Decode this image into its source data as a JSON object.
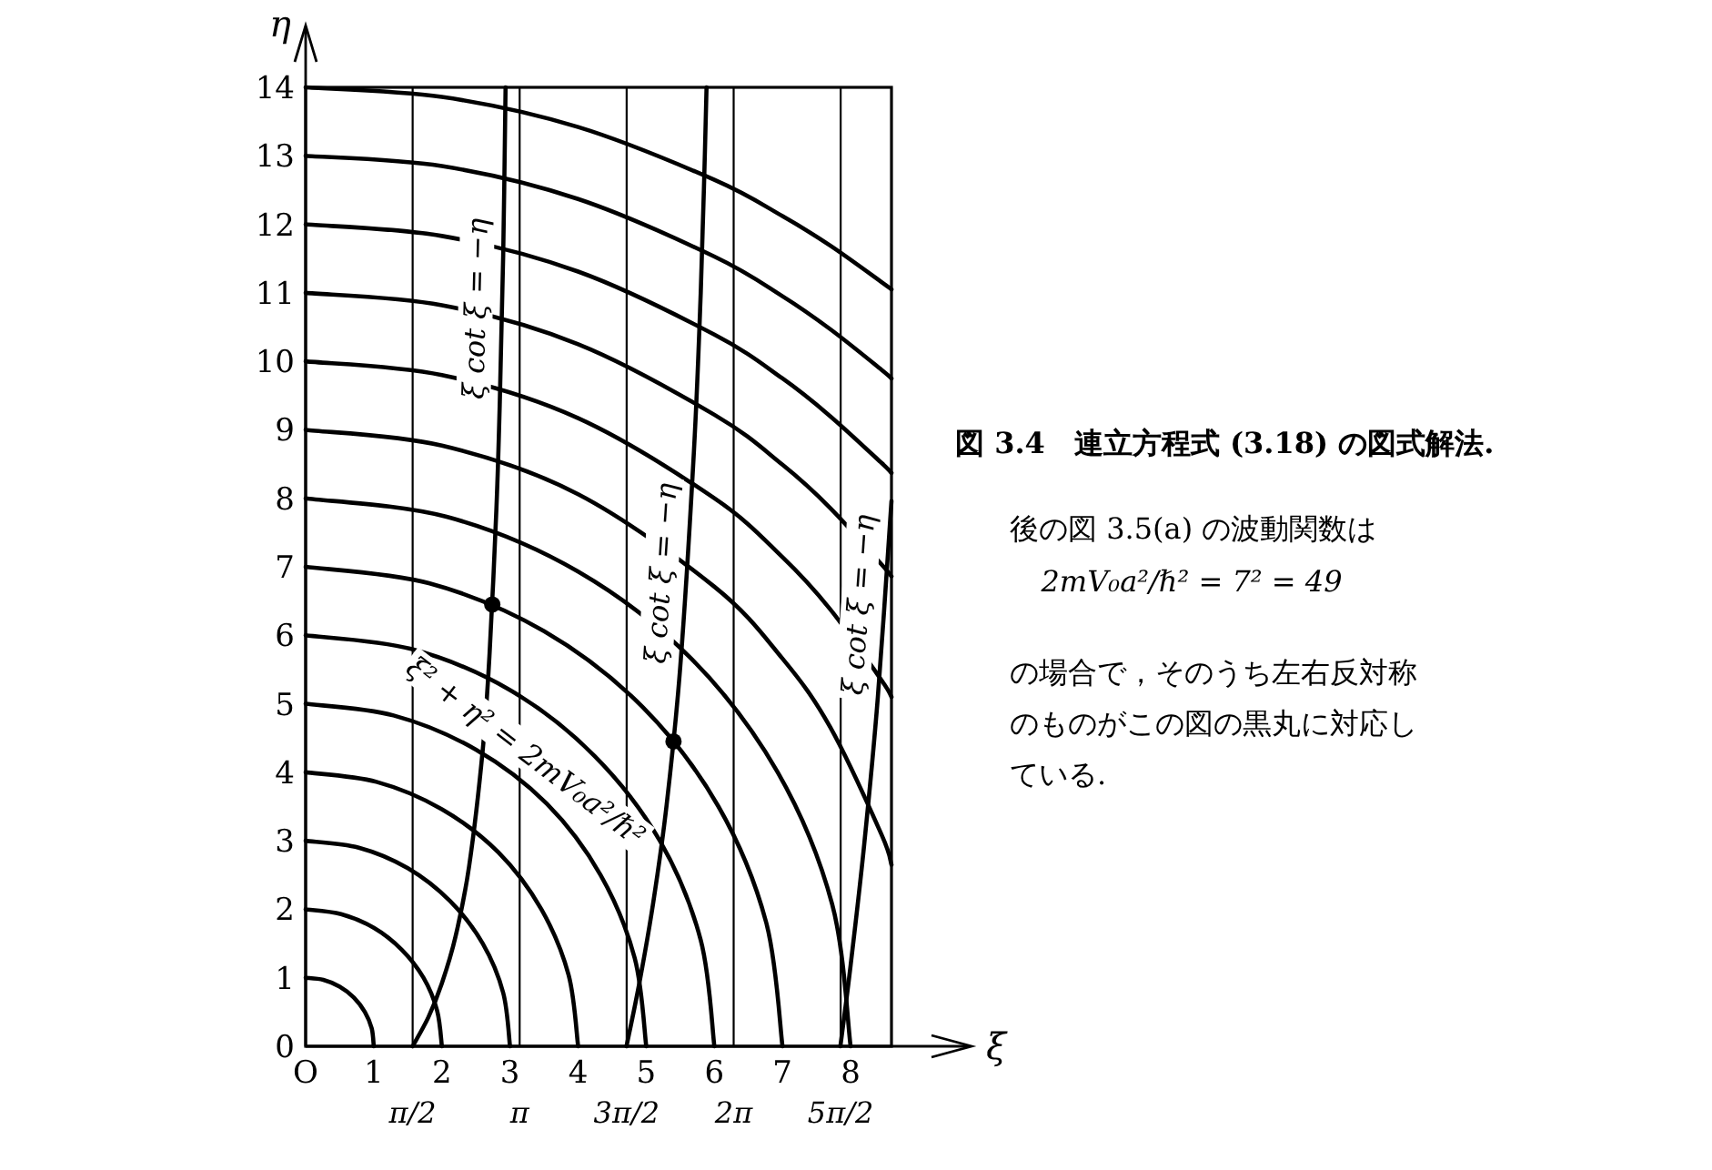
{
  "chart_data": {
    "type": "line",
    "title": "図 3.4　連立方程式 (3.18) の図式解法.",
    "xlabel": "ξ",
    "ylabel": "η",
    "xlim": [
      0,
      8.6
    ],
    "ylim": [
      0,
      14
    ],
    "xticks": [
      {
        "value": 0,
        "label": "O"
      },
      1,
      2,
      3,
      4,
      5,
      6,
      7,
      8
    ],
    "yticks": [
      0,
      1,
      2,
      3,
      4,
      5,
      6,
      7,
      8,
      9,
      10,
      11,
      12,
      13,
      14
    ],
    "ref_lines": [
      {
        "axis": "x",
        "value": 1.5708,
        "label": "π/2",
        "color": "#000000"
      },
      {
        "axis": "x",
        "value": 3.1416,
        "label": "π",
        "color": "#000000"
      },
      {
        "axis": "x",
        "value": 4.7124,
        "label": "3π/2",
        "color": "#000000"
      },
      {
        "axis": "x",
        "value": 6.2832,
        "label": "2π",
        "color": "#000000"
      },
      {
        "axis": "x",
        "value": 7.854,
        "label": "5π/2",
        "color": "#000000"
      }
    ],
    "annotations": [
      "後の図 3.5(a) の波動関数は",
      "2mV₀a²/ℏ² = 7² = 49",
      "の場合で，そのうち左右反対称",
      "のものがこの図の黒丸に対応し",
      "ている.",
      {
        "text": "ξ cot ξ = −η",
        "x": 2.88,
        "y": 10.76
      },
      {
        "text": "ξ cot ξ = −η",
        "x": 5.6,
        "y": 6.88
      },
      {
        "text": "ξ cot ξ = −η",
        "x": 8.5,
        "y": 6.42
      },
      {
        "text": "ξ² + η² = 2mV₀a²/ℏ²",
        "x": 3,
        "y": 4
      }
    ],
    "series": [
      {
        "color": "#000000",
        "x": [
          0,
          0.26,
          0.5,
          0.71,
          0.87,
          0.97,
          1
        ],
        "values": [
          1,
          0.97,
          0.87,
          0.71,
          0.5,
          0.26,
          0
        ]
      },
      {
        "color": "#000000",
        "x": [
          0,
          0.52,
          1,
          1.41,
          1.73,
          1.93,
          2
        ],
        "values": [
          2,
          1.93,
          1.73,
          1.41,
          1,
          0.52,
          0
        ]
      },
      {
        "color": "#000000",
        "x": [
          0,
          0.78,
          1.5,
          2.12,
          2.6,
          2.9,
          3
        ],
        "values": [
          3,
          2.9,
          2.6,
          2.12,
          1.5,
          0.78,
          0
        ]
      },
      {
        "color": "#000000",
        "x": [
          0,
          1.04,
          2,
          2.83,
          3.46,
          3.86,
          4
        ],
        "values": [
          4,
          3.86,
          3.46,
          2.83,
          2,
          1.04,
          0
        ]
      },
      {
        "color": "#000000",
        "x": [
          0,
          1.29,
          2.5,
          3.54,
          4.33,
          4.83,
          5
        ],
        "values": [
          5,
          4.83,
          4.33,
          3.54,
          2.5,
          1.29,
          0
        ]
      },
      {
        "color": "#000000",
        "x": [
          0,
          1.55,
          3,
          4.24,
          5.2,
          5.8,
          6
        ],
        "values": [
          6,
          5.8,
          5.2,
          4.24,
          3,
          1.55,
          0
        ]
      },
      {
        "color": "#000000",
        "x": [
          0,
          1.81,
          3.5,
          4.95,
          6.06,
          6.76,
          7
        ],
        "values": [
          7,
          6.76,
          6.06,
          4.95,
          3.5,
          1.81,
          0
        ]
      },
      {
        "color": "#000000",
        "x": [
          0,
          2.07,
          4,
          5.66,
          6.93,
          7.73,
          8
        ],
        "values": [
          8,
          7.73,
          6.93,
          5.66,
          4,
          2.07,
          0
        ]
      },
      {
        "color": "#000000",
        "x": [
          0,
          2,
          4,
          6,
          7,
          7.7,
          8.45,
          8.6
        ],
        "values": [
          9,
          8.77,
          8.06,
          6.71,
          5.66,
          4.66,
          3.1,
          2.65
        ]
      },
      {
        "color": "#000000",
        "x": [
          0,
          2,
          4,
          6,
          7,
          7.7,
          8.45,
          8.6
        ],
        "values": [
          10,
          9.8,
          9.17,
          8,
          7.14,
          6.38,
          5.35,
          5.1
        ]
      },
      {
        "color": "#000000",
        "x": [
          0,
          2,
          4,
          6,
          7,
          7.7,
          8.45,
          8.6
        ],
        "values": [
          11,
          10.82,
          10.25,
          9.22,
          8.49,
          7.86,
          7.04,
          6.86
        ]
      },
      {
        "color": "#000000",
        "x": [
          0,
          2,
          4,
          6,
          7,
          7.7,
          8.45,
          8.6
        ],
        "values": [
          12,
          11.83,
          11.31,
          10.39,
          9.75,
          9.2,
          8.52,
          8.37
        ]
      },
      {
        "color": "#000000",
        "x": [
          0,
          2,
          4,
          6,
          7,
          7.7,
          8.45,
          8.6
        ],
        "values": [
          13,
          12.85,
          12.37,
          11.53,
          10.95,
          10.47,
          9.88,
          9.75
        ]
      },
      {
        "color": "#000000",
        "x": [
          0,
          2,
          4,
          6,
          7,
          7.7,
          8.45,
          8.6
        ],
        "values": [
          14,
          13.86,
          13.42,
          12.65,
          12.12,
          11.69,
          11.16,
          11.05
        ]
      },
      {
        "color": "#000000",
        "x": [
          1.57,
          1.8,
          2,
          2.2,
          2.4,
          2.6,
          2.7,
          2.8,
          2.85,
          2.9,
          2.935
        ],
        "values": [
          0,
          0.42,
          0.92,
          1.6,
          2.63,
          4.33,
          5.73,
          7.84,
          9.4,
          11.55,
          14
        ]
      },
      {
        "color": "#000000",
        "x": [
          4.71,
          4.9,
          5.1,
          5.3,
          5.5,
          5.7,
          5.8,
          5.85,
          5.885
        ],
        "values": [
          0,
          0.93,
          2.08,
          3.53,
          5.55,
          8.69,
          11,
          12.64,
          14
        ]
      },
      {
        "color": "#000000",
        "x": [
          7.85,
          8,
          8.2,
          8.4,
          8.6
        ],
        "values": [
          0,
          1.18,
          2.95,
          5.1,
          7.96
        ]
      },
      {
        "type": "scatter",
        "color": "#000000",
        "marker": "circle",
        "x": [
          2.74,
          5.4
        ],
        "values": [
          6.45,
          4.45
        ]
      }
    ]
  }
}
